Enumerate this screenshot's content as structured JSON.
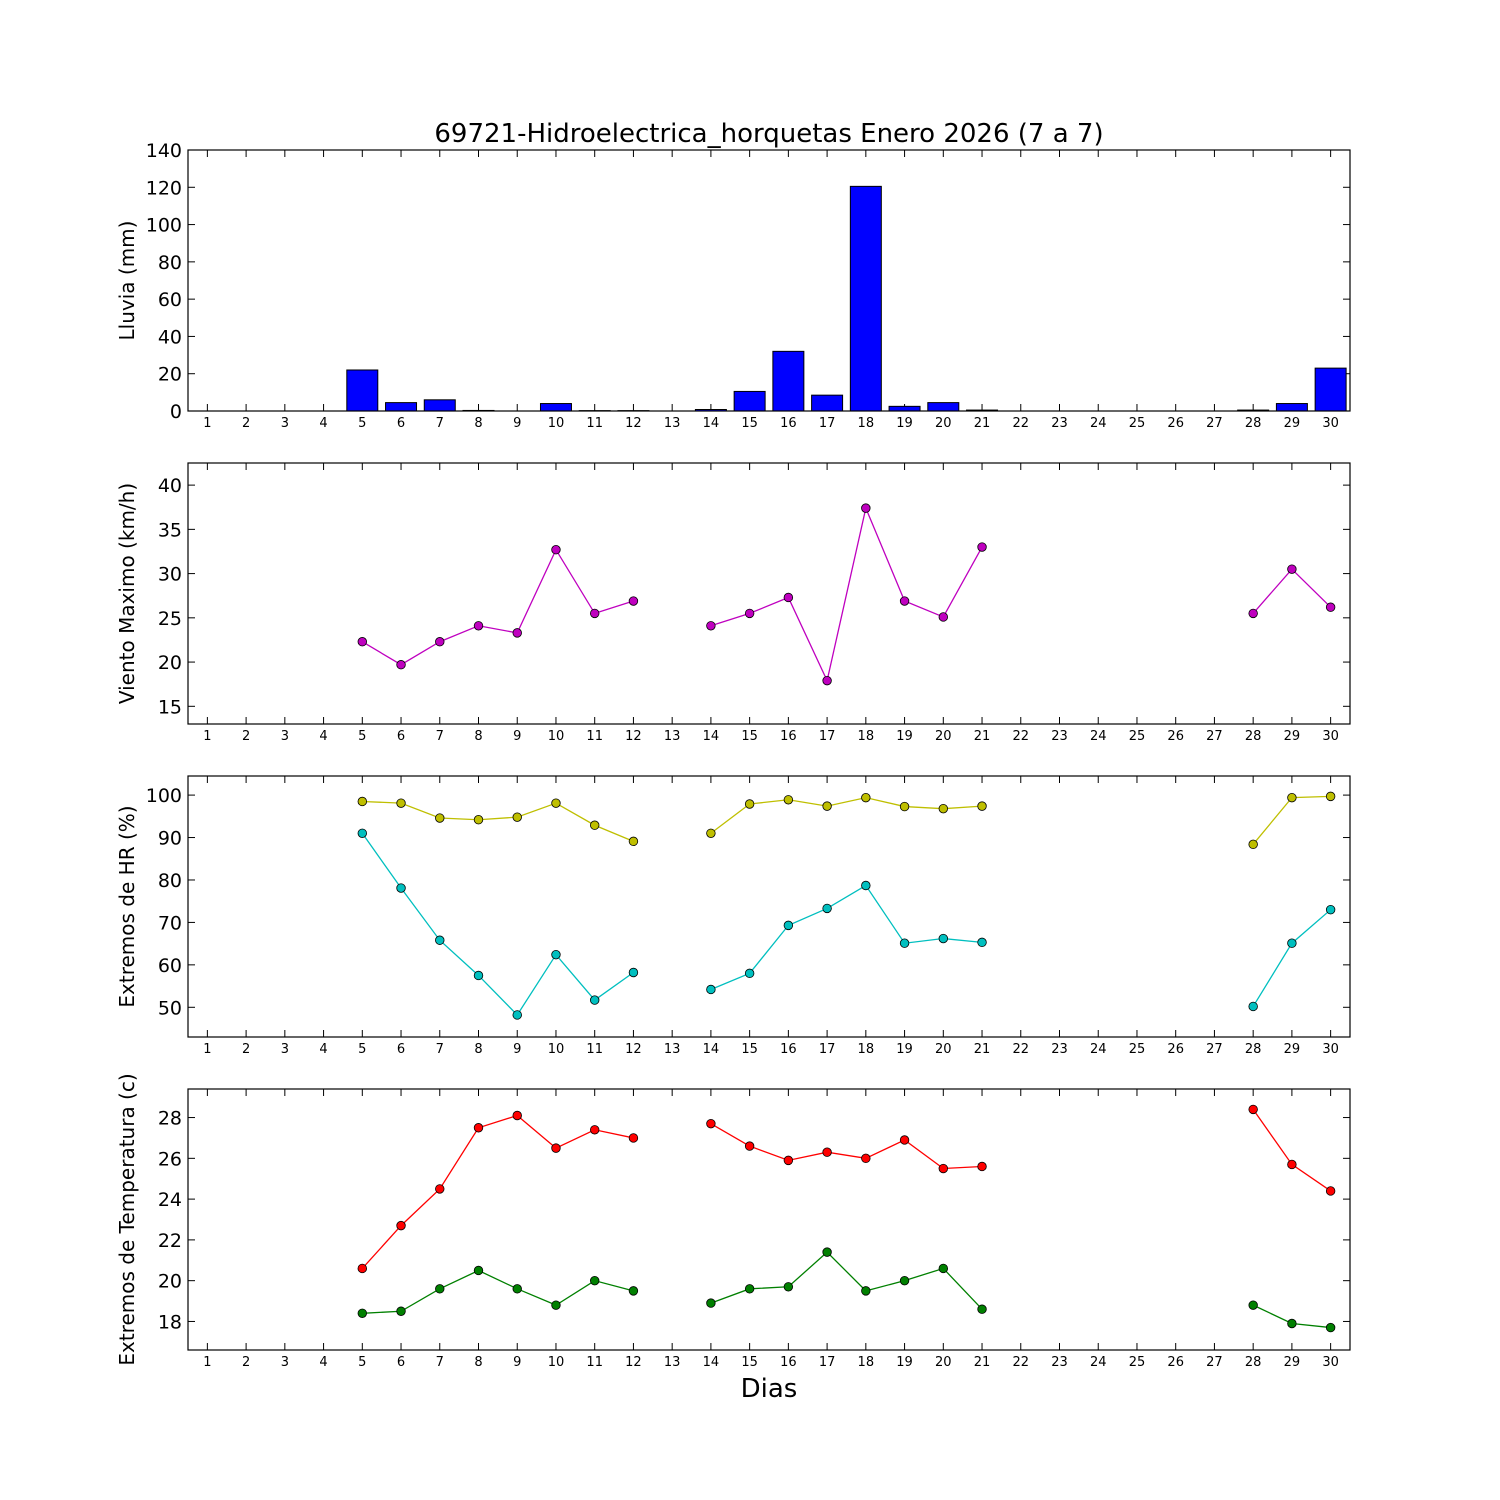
{
  "chart_data": {
    "title": "69721-Hidroelectrica_horquetas Enero 2026  (7 a 7)",
    "xlabel": "Dias",
    "days": [
      1,
      2,
      3,
      4,
      5,
      6,
      7,
      8,
      9,
      10,
      11,
      12,
      13,
      14,
      15,
      16,
      17,
      18,
      19,
      20,
      21,
      22,
      23,
      24,
      25,
      26,
      27,
      28,
      29,
      30
    ],
    "panels": [
      {
        "type": "bar",
        "ylabel": "Lluvia (mm)",
        "ylim": [
          0,
          140
        ],
        "yticks": [
          0,
          20,
          40,
          60,
          80,
          100,
          120,
          140
        ],
        "series": [
          {
            "color": "#0000ff",
            "values": [
              0,
              0,
              0,
              0,
              22,
              4.5,
              6,
              0.3,
              0,
              4,
              0.2,
              0.2,
              0,
              0.8,
              10.5,
              32,
              8.5,
              120.5,
              2.5,
              4.5,
              0.5,
              0,
              0,
              0,
              0,
              0,
              0,
              0.5,
              4,
              23
            ]
          }
        ]
      },
      {
        "type": "line",
        "ylabel": "Viento Maximo (km/h)",
        "ylim": [
          13,
          42.5
        ],
        "yticks": [
          15,
          20,
          25,
          30,
          35,
          40
        ],
        "series": [
          {
            "color": "#bf00bf",
            "values": [
              null,
              null,
              null,
              null,
              22.3,
              19.7,
              22.3,
              24.1,
              23.3,
              32.7,
              25.5,
              26.9,
              null,
              24.1,
              25.5,
              27.3,
              17.9,
              37.4,
              26.9,
              25.1,
              33.0,
              null,
              null,
              null,
              null,
              null,
              null,
              25.5,
              30.5,
              26.2
            ]
          }
        ]
      },
      {
        "type": "line",
        "ylabel": "Extremos de HR (%)",
        "ylim": [
          43,
          104.5
        ],
        "yticks": [
          50,
          60,
          70,
          80,
          90,
          100
        ],
        "series": [
          {
            "color": "#bfbf00",
            "values": [
              null,
              null,
              null,
              null,
              98.5,
              98.1,
              94.6,
              94.2,
              94.8,
              98.1,
              92.9,
              89.1,
              null,
              91.0,
              97.9,
              98.9,
              97.4,
              99.4,
              97.3,
              96.8,
              97.4,
              null,
              null,
              null,
              null,
              null,
              null,
              88.4,
              99.4,
              99.7
            ]
          },
          {
            "color": "#00bfbf",
            "values": [
              null,
              null,
              null,
              null,
              91.0,
              78.1,
              65.8,
              57.5,
              48.2,
              62.4,
              51.7,
              58.2,
              null,
              54.2,
              58.0,
              69.3,
              73.3,
              78.7,
              65.1,
              66.2,
              65.3,
              null,
              null,
              null,
              null,
              null,
              null,
              50.2,
              65.1,
              73.0
            ]
          }
        ]
      },
      {
        "type": "line",
        "ylabel": "Extremos de Temperatura (c)",
        "ylim": [
          16.6,
          29.4
        ],
        "yticks": [
          18,
          20,
          22,
          24,
          26,
          28
        ],
        "series": [
          {
            "color": "#ff0000",
            "values": [
              null,
              null,
              null,
              null,
              20.6,
              22.7,
              24.5,
              27.5,
              28.1,
              26.5,
              27.4,
              27.0,
              null,
              27.7,
              26.6,
              25.9,
              26.3,
              26.0,
              26.9,
              25.5,
              25.6,
              null,
              null,
              null,
              null,
              null,
              null,
              28.4,
              25.7,
              24.4
            ]
          },
          {
            "color": "#008000",
            "values": [
              null,
              null,
              null,
              null,
              18.4,
              18.5,
              19.6,
              20.5,
              19.6,
              18.8,
              20.0,
              19.5,
              null,
              18.9,
              19.6,
              19.7,
              21.4,
              19.5,
              20.0,
              20.6,
              18.6,
              null,
              null,
              null,
              null,
              null,
              null,
              18.8,
              17.9,
              17.7
            ]
          }
        ]
      }
    ]
  }
}
